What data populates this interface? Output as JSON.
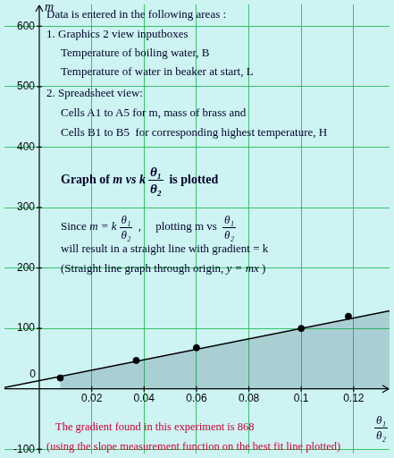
{
  "chart_data": {
    "type": "scatter",
    "y_label": "m",
    "x_label": {
      "num": "θ₁",
      "den": "θ₂"
    },
    "x": [
      0.008,
      0.037,
      0.06,
      0.1,
      0.118
    ],
    "values": [
      18,
      47,
      68,
      100,
      120
    ],
    "color": "#000000",
    "marker": "circle",
    "fit_line": {
      "x": [
        -0.0133,
        0.1337
      ],
      "values": [
        2,
        129
      ],
      "color": "#000000"
    },
    "shaded_area": {
      "x": [
        0.008,
        0.1337
      ],
      "values": [
        20,
        129
      ],
      "color": "#285064"
    },
    "xlim": [
      -0.0133,
      0.1337
    ],
    "xticks": [
      0.02,
      0.04,
      0.06,
      0.08,
      0.1,
      0.12
    ],
    "ylim": [
      -107,
      636
    ],
    "yticks": [
      -100,
      0,
      100,
      200,
      300,
      400,
      500,
      600
    ],
    "grid": true,
    "annotations": [
      {
        "segments": [
          "Data is entered in the following areas :"
        ]
      },
      {
        "segments": [
          "1. Graphics 2 view inputboxes"
        ]
      },
      {
        "segments": [
          "Temperature of boiling water, B"
        ]
      },
      {
        "segments": [
          "Temperature of water in beaker at start, L"
        ]
      },
      {
        "segments": [
          "2. Spreadsheet view:"
        ]
      },
      {
        "segments": [
          "Cells A1 to A5 for m, mass of brass and"
        ]
      },
      {
        "segments": [
          "Cells B1 to B5  for corresponding highest temperature, H"
        ]
      },
      {
        "segments": [
          "Graph of ",
          {
            "math": "m vs k"
          },
          {
            "num": "θ₁",
            "den": "θ₂"
          },
          " is plotted"
        ]
      },
      {
        "segments": [
          "Since ",
          {
            "math": "m = k"
          },
          {
            "num": "θ₁",
            "den": "θ₂"
          },
          " ,     plotting m vs ",
          {
            "num": "θ₁",
            "den": "θ₂"
          }
        ]
      },
      {
        "segments": [
          "will result in a straight line with gradient = k"
        ]
      },
      {
        "segments": [
          "(Straight line graph through origin, ",
          {
            "math": "y = mx"
          },
          " )"
        ]
      },
      {
        "segments": [
          "The gradient found in this experiment is 868"
        ],
        "color": "#cc0033"
      },
      {
        "segments": [
          "(using the slope measurement function on the best fit line plotted)"
        ],
        "color": "#cc0033"
      }
    ]
  }
}
